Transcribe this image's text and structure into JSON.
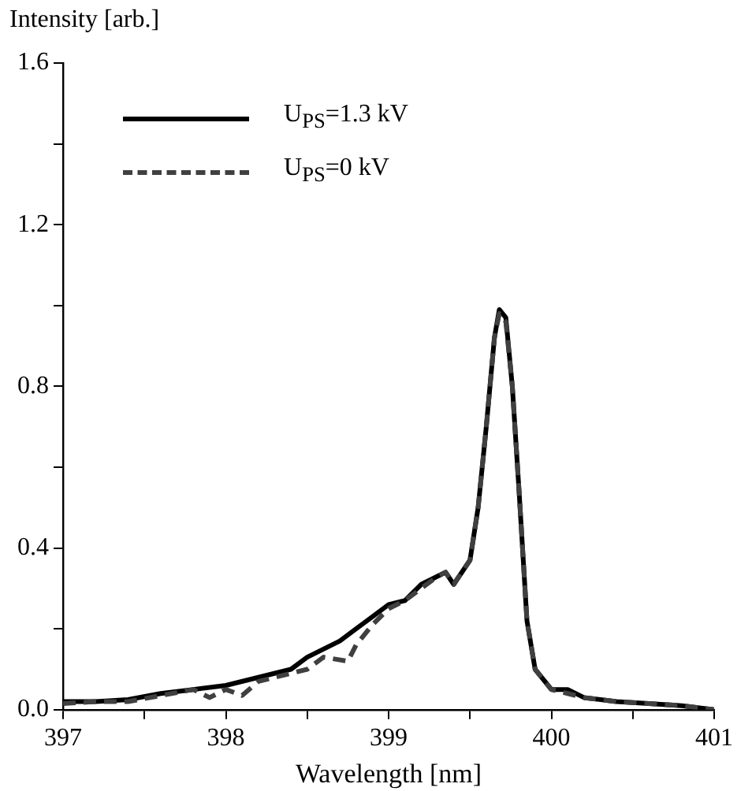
{
  "chart_data": {
    "type": "line",
    "xlabel": "Wavelength [nm]",
    "ylabel": "Intensity [arb.]",
    "xlim": [
      397,
      401
    ],
    "ylim": [
      0,
      1.6
    ],
    "xticks": [
      397,
      {
        "value": 397.5,
        "label": null
      },
      398,
      {
        "value": 398.5,
        "label": null
      },
      399,
      {
        "value": 399.5,
        "label": null
      },
      400,
      {
        "value": 400.5,
        "label": null
      },
      401
    ],
    "yticks": [
      {
        "value": 0,
        "label": "0.0"
      },
      {
        "value": 0.2,
        "label": null
      },
      {
        "value": 0.4,
        "label": "0.4"
      },
      {
        "value": 0.6,
        "label": null
      },
      {
        "value": 0.8,
        "label": "0.8"
      },
      {
        "value": 1.0,
        "label": null
      },
      {
        "value": 1.2,
        "label": "1.2"
      },
      {
        "value": 1.4,
        "label": null
      },
      {
        "value": 1.6,
        "label": "1.6"
      }
    ],
    "legend": "top left",
    "grid": false,
    "marker": "none",
    "series": [
      {
        "name": "U$_{PS}$=1.3 kV",
        "color": "#000000",
        "line_style": "solid",
        "x": [
          397.0,
          397.2,
          397.4,
          397.6,
          397.8,
          398.0,
          398.2,
          398.4,
          398.5,
          398.6,
          398.7,
          398.8,
          398.9,
          399.0,
          399.1,
          399.2,
          399.3,
          399.35,
          399.4,
          399.5,
          399.55,
          399.6,
          399.65,
          399.68,
          399.72,
          399.76,
          399.8,
          399.85,
          399.9,
          400.0,
          400.1,
          400.2,
          400.4,
          400.6,
          400.8,
          401.0
        ],
        "values": [
          0.02,
          0.02,
          0.025,
          0.04,
          0.05,
          0.06,
          0.08,
          0.1,
          0.13,
          0.15,
          0.17,
          0.2,
          0.23,
          0.26,
          0.27,
          0.31,
          0.33,
          0.34,
          0.31,
          0.37,
          0.5,
          0.7,
          0.92,
          0.99,
          0.97,
          0.8,
          0.55,
          0.22,
          0.1,
          0.05,
          0.05,
          0.03,
          0.02,
          0.015,
          0.01,
          0.0
        ]
      },
      {
        "name": "U$_{PS}$=0 kV",
        "color": "#404040",
        "line_style": "dashed",
        "x": [
          397.0,
          397.2,
          397.4,
          397.6,
          397.8,
          397.9,
          398.0,
          398.1,
          398.2,
          398.4,
          398.5,
          398.6,
          398.75,
          398.8,
          398.9,
          399.0,
          399.1,
          399.2,
          399.3,
          399.35,
          399.4,
          399.5,
          399.55,
          399.6,
          399.65,
          399.68,
          399.72,
          399.76,
          399.8,
          399.85,
          399.9,
          400.0,
          400.1,
          400.2,
          400.4,
          400.6,
          400.8,
          401.0
        ],
        "values": [
          0.015,
          0.02,
          0.02,
          0.035,
          0.05,
          0.03,
          0.05,
          0.035,
          0.07,
          0.09,
          0.1,
          0.13,
          0.12,
          0.16,
          0.21,
          0.25,
          0.27,
          0.3,
          0.33,
          0.34,
          0.31,
          0.37,
          0.5,
          0.7,
          0.92,
          0.98,
          0.96,
          0.8,
          0.55,
          0.22,
          0.1,
          0.05,
          0.04,
          0.03,
          0.02,
          0.015,
          0.01,
          0.0
        ]
      }
    ]
  }
}
